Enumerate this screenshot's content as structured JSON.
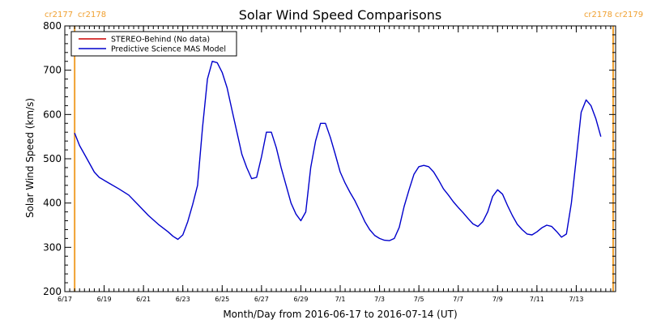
{
  "chart_data": {
    "type": "line",
    "title": "Solar Wind Speed Comparisons",
    "xlabel": "Month/Day from 2016-06-17 to 2016-07-14 (UT)",
    "ylabel": "Solar Wind Speed (km/s)",
    "x_range": [
      "2016-06-17",
      "2016-07-15"
    ],
    "ylim": [
      200,
      800
    ],
    "y_ticks": [
      200,
      300,
      400,
      500,
      600,
      700,
      800
    ],
    "x_ticks": [
      {
        "date": "2016-06-17",
        "label": "6/17"
      },
      {
        "date": "2016-06-19",
        "label": "6/19"
      },
      {
        "date": "2016-06-21",
        "label": "6/21"
      },
      {
        "date": "2016-06-23",
        "label": "6/23"
      },
      {
        "date": "2016-06-25",
        "label": "6/25"
      },
      {
        "date": "2016-06-27",
        "label": "6/27"
      },
      {
        "date": "2016-06-29",
        "label": "6/29"
      },
      {
        "date": "2016-07-01",
        "label": "7/1"
      },
      {
        "date": "2016-07-03",
        "label": "7/3"
      },
      {
        "date": "2016-07-05",
        "label": "7/5"
      },
      {
        "date": "2016-07-07",
        "label": "7/7"
      },
      {
        "date": "2016-07-09",
        "label": "7/9"
      },
      {
        "date": "2016-07-11",
        "label": "7/11"
      },
      {
        "date": "2016-07-13",
        "label": "7/13"
      }
    ],
    "legend": {
      "placement": "top-left",
      "entries": [
        {
          "label": "STEREO-Behind (No data)",
          "color": "#cc0000"
        },
        {
          "label": "Predictive Science MAS Model",
          "color": "#0000cc"
        }
      ]
    },
    "carrington_markers": [
      {
        "date": "2016-06-17 12:00",
        "left_label": "cr2177",
        "right_label": "cr2178",
        "side": "left"
      },
      {
        "date": "2016-07-14 21:00",
        "left_label": "cr2178",
        "right_label": "cr2179",
        "side": "right"
      }
    ],
    "marker_color": "#f0a030",
    "series": [
      {
        "name": "Predictive Science MAS Model",
        "color": "#0000cc",
        "points": [
          [
            "2016-06-17 12:00",
            558
          ],
          [
            "2016-06-17 18:00",
            530
          ],
          [
            "2016-06-18 00:00",
            510
          ],
          [
            "2016-06-18 06:00",
            490
          ],
          [
            "2016-06-18 12:00",
            470
          ],
          [
            "2016-06-18 18:00",
            458
          ],
          [
            "2016-06-19 06:00",
            445
          ],
          [
            "2016-06-19 18:00",
            432
          ],
          [
            "2016-06-20 06:00",
            418
          ],
          [
            "2016-06-20 18:00",
            395
          ],
          [
            "2016-06-21 06:00",
            372
          ],
          [
            "2016-06-21 18:00",
            352
          ],
          [
            "2016-06-22 06:00",
            335
          ],
          [
            "2016-06-22 12:00",
            325
          ],
          [
            "2016-06-22 18:00",
            318
          ],
          [
            "2016-06-23 00:00",
            328
          ],
          [
            "2016-06-23 06:00",
            358
          ],
          [
            "2016-06-23 12:00",
            397
          ],
          [
            "2016-06-23 18:00",
            440
          ],
          [
            "2016-06-24 00:00",
            570
          ],
          [
            "2016-06-24 06:00",
            680
          ],
          [
            "2016-06-24 12:00",
            720
          ],
          [
            "2016-06-24 18:00",
            717
          ],
          [
            "2016-06-25 00:00",
            695
          ],
          [
            "2016-06-25 06:00",
            660
          ],
          [
            "2016-06-25 12:00",
            610
          ],
          [
            "2016-06-25 18:00",
            560
          ],
          [
            "2016-06-26 00:00",
            510
          ],
          [
            "2016-06-26 06:00",
            480
          ],
          [
            "2016-06-26 12:00",
            455
          ],
          [
            "2016-06-26 18:00",
            458
          ],
          [
            "2016-06-27 00:00",
            505
          ],
          [
            "2016-06-27 06:00",
            560
          ],
          [
            "2016-06-27 12:00",
            560
          ],
          [
            "2016-06-27 18:00",
            525
          ],
          [
            "2016-06-28 00:00",
            480
          ],
          [
            "2016-06-28 06:00",
            440
          ],
          [
            "2016-06-28 12:00",
            400
          ],
          [
            "2016-06-28 18:00",
            375
          ],
          [
            "2016-06-29 00:00",
            360
          ],
          [
            "2016-06-29 06:00",
            380
          ],
          [
            "2016-06-29 12:00",
            480
          ],
          [
            "2016-06-29 18:00",
            540
          ],
          [
            "2016-06-30 00:00",
            580
          ],
          [
            "2016-06-30 06:00",
            580
          ],
          [
            "2016-06-30 12:00",
            548
          ],
          [
            "2016-06-30 18:00",
            510
          ],
          [
            "2016-07-01 00:00",
            470
          ],
          [
            "2016-07-01 06:00",
            445
          ],
          [
            "2016-07-01 12:00",
            424
          ],
          [
            "2016-07-01 18:00",
            405
          ],
          [
            "2016-07-02 00:00",
            382
          ],
          [
            "2016-07-02 06:00",
            358
          ],
          [
            "2016-07-02 12:00",
            340
          ],
          [
            "2016-07-02 18:00",
            327
          ],
          [
            "2016-07-03 00:00",
            320
          ],
          [
            "2016-07-03 06:00",
            316
          ],
          [
            "2016-07-03 12:00",
            315
          ],
          [
            "2016-07-03 18:00",
            320
          ],
          [
            "2016-07-04 00:00",
            345
          ],
          [
            "2016-07-04 06:00",
            392
          ],
          [
            "2016-07-04 12:00",
            430
          ],
          [
            "2016-07-04 18:00",
            465
          ],
          [
            "2016-07-05 00:00",
            482
          ],
          [
            "2016-07-05 06:00",
            485
          ],
          [
            "2016-07-05 12:00",
            482
          ],
          [
            "2016-07-05 18:00",
            470
          ],
          [
            "2016-07-06 00:00",
            452
          ],
          [
            "2016-07-06 06:00",
            432
          ],
          [
            "2016-07-06 12:00",
            418
          ],
          [
            "2016-07-06 18:00",
            403
          ],
          [
            "2016-07-07 00:00",
            390
          ],
          [
            "2016-07-07 06:00",
            378
          ],
          [
            "2016-07-07 12:00",
            365
          ],
          [
            "2016-07-07 18:00",
            353
          ],
          [
            "2016-07-08 00:00",
            347
          ],
          [
            "2016-07-08 06:00",
            358
          ],
          [
            "2016-07-08 12:00",
            380
          ],
          [
            "2016-07-08 18:00",
            415
          ],
          [
            "2016-07-09 00:00",
            430
          ],
          [
            "2016-07-09 06:00",
            420
          ],
          [
            "2016-07-09 12:00",
            395
          ],
          [
            "2016-07-09 18:00",
            372
          ],
          [
            "2016-07-10 00:00",
            352
          ],
          [
            "2016-07-10 06:00",
            340
          ],
          [
            "2016-07-10 12:00",
            330
          ],
          [
            "2016-07-10 18:00",
            328
          ],
          [
            "2016-07-11 00:00",
            335
          ],
          [
            "2016-07-11 06:00",
            344
          ],
          [
            "2016-07-11 12:00",
            350
          ],
          [
            "2016-07-11 18:00",
            347
          ],
          [
            "2016-07-12 00:00",
            336
          ],
          [
            "2016-07-12 06:00",
            323
          ],
          [
            "2016-07-12 12:00",
            330
          ],
          [
            "2016-07-12 18:00",
            400
          ],
          [
            "2016-07-13 00:00",
            500
          ],
          [
            "2016-07-13 06:00",
            605
          ],
          [
            "2016-07-13 12:00",
            633
          ],
          [
            "2016-07-13 18:00",
            620
          ],
          [
            "2016-07-14 00:00",
            590
          ],
          [
            "2016-07-14 06:00",
            550
          ]
        ]
      }
    ]
  }
}
